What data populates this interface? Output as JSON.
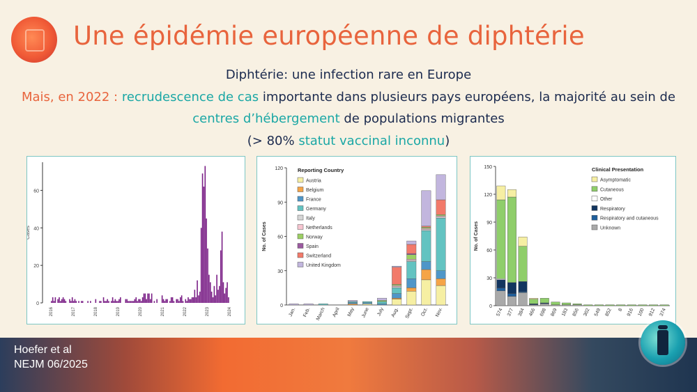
{
  "slide": {
    "title": "Une épidémie européenne de diphtérie",
    "line1": "Diphtérie: une infection rare en Europe",
    "line2": {
      "a": "Mais, en 2022 : ",
      "b": "recrudescence de cas",
      "c": " importante dans plusieurs pays européens, la majorité au sein de"
    },
    "line3": {
      "a": "centres d’hébergement",
      "b": " de populations migrantes"
    },
    "line4": {
      "a": "(> 80% ",
      "b": "statut vaccinal inconnu",
      "c": ")"
    },
    "footer": {
      "line1": "Hoefer et al",
      "line2": "NEJM 06/2025"
    }
  },
  "colors": {
    "title": "#e8643d",
    "teal": "#1aa7a5",
    "navy": "#1b2a4e",
    "bars1": "#7a1f86"
  },
  "chart_data": [
    {
      "type": "bar",
      "title": "",
      "ylabel": "Cases",
      "ylim": [
        0,
        75
      ],
      "yticks": [
        0,
        20,
        40,
        60
      ],
      "xticks": [
        "2016",
        "2017",
        "2018",
        "2019",
        "2020",
        "2021",
        "2022",
        "2023",
        "2024"
      ],
      "x_start": 2016,
      "x_end": 2024,
      "values": [
        1,
        3,
        1,
        3,
        0,
        2,
        3,
        1,
        2,
        3,
        2,
        1,
        0,
        0,
        2,
        1,
        3,
        1,
        2,
        1,
        0,
        1,
        0,
        1,
        1,
        0,
        0,
        0,
        1,
        0,
        1,
        0,
        0,
        0,
        2,
        0,
        0,
        1,
        1,
        0,
        3,
        1,
        1,
        2,
        1,
        0,
        1,
        3,
        1,
        2,
        1,
        1,
        2,
        3,
        0,
        0,
        0,
        2,
        2,
        1,
        1,
        1,
        1,
        1,
        2,
        3,
        1,
        2,
        2,
        1,
        3,
        5,
        5,
        2,
        5,
        5,
        2,
        5,
        0,
        1,
        0,
        2,
        0,
        0,
        0,
        4,
        2,
        1,
        2,
        2,
        0,
        1,
        3,
        3,
        1,
        0,
        2,
        2,
        1,
        3,
        4,
        1,
        0,
        2,
        1,
        3,
        2,
        2,
        3,
        3,
        7,
        3,
        12,
        4,
        6,
        40,
        69,
        62,
        73,
        45,
        29,
        15,
        11,
        6,
        3,
        9,
        4,
        15,
        7,
        9,
        28,
        38,
        11,
        5,
        8,
        11,
        3
      ],
      "color": "#7a1f86"
    },
    {
      "type": "bar",
      "stacked": true,
      "title": "",
      "ylabel": "No. of Cases",
      "ylim": [
        0,
        120
      ],
      "yticks": [
        0,
        30,
        60,
        90,
        120
      ],
      "categories": [
        "Jan.",
        "Feb.",
        "March",
        "April",
        "May",
        "June",
        "July",
        "Aug.",
        "Sept.",
        "Oct.",
        "Nov."
      ],
      "legend_title": "Reporting Country",
      "legend_position": "top-left",
      "series": [
        {
          "name": "Austria",
          "color": "#f6efa3",
          "values": [
            0,
            0,
            0,
            0,
            0,
            1,
            0,
            5,
            12,
            22,
            17
          ]
        },
        {
          "name": "Belgium",
          "color": "#f5a447",
          "values": [
            0,
            0,
            0,
            0,
            1,
            0,
            0,
            1,
            3,
            9,
            6
          ]
        },
        {
          "name": "France",
          "color": "#4f96c8",
          "values": [
            0,
            0,
            0,
            0,
            1,
            1,
            1,
            4,
            8,
            7,
            7
          ]
        },
        {
          "name": "Germany",
          "color": "#63c3c1",
          "values": [
            0,
            0,
            1,
            0,
            1,
            1,
            2,
            5,
            15,
            27,
            46
          ]
        },
        {
          "name": "Italy",
          "color": "#d6d6d6",
          "values": [
            0,
            0,
            0,
            0,
            0,
            0,
            0,
            1,
            1,
            1,
            1
          ]
        },
        {
          "name": "Netherlands",
          "color": "#f7c5d0",
          "values": [
            0,
            0,
            0,
            0,
            0,
            0,
            0,
            1,
            1,
            1,
            1
          ]
        },
        {
          "name": "Norway",
          "color": "#9ccf63",
          "values": [
            0,
            0,
            0,
            0,
            0,
            0,
            1,
            1,
            4,
            1,
            1
          ]
        },
        {
          "name": "Spain",
          "color": "#9b5aa0",
          "values": [
            0,
            0,
            0,
            0,
            0,
            0,
            0,
            0,
            1,
            0,
            0
          ]
        },
        {
          "name": "Switzerland",
          "color": "#f27a6a",
          "values": [
            0,
            0,
            0,
            0,
            0,
            0,
            0,
            15,
            8,
            1,
            13
          ]
        },
        {
          "name": "United Kingdom",
          "color": "#c2b6de",
          "values": [
            1,
            1,
            0,
            0,
            1,
            0,
            2,
            1,
            3,
            31,
            22
          ]
        }
      ]
    },
    {
      "type": "bar",
      "stacked": true,
      "title": "",
      "ylabel": "No. of Cases",
      "ylim": [
        0,
        150
      ],
      "yticks": [
        0,
        30,
        60,
        90,
        120,
        150
      ],
      "categories": [
        "574",
        "377",
        "384",
        "466",
        "698",
        "869",
        "183",
        "856",
        "302",
        "549",
        "852",
        "8",
        "916",
        "100",
        "912",
        "374"
      ],
      "legend_title": "Clinical Presentation",
      "legend_position": "top-right",
      "series": [
        {
          "name": "Unknown",
          "color": "#a9a9a9",
          "values": [
            16,
            10,
            14,
            1,
            2,
            1,
            1,
            1,
            0,
            0,
            0,
            0,
            0,
            0,
            0,
            0
          ]
        },
        {
          "name": "Respiratory and cutaneous",
          "color": "#1f5f9c",
          "values": [
            3,
            3,
            1,
            0,
            0,
            0,
            0,
            0,
            0,
            0,
            0,
            0,
            0,
            0,
            0,
            0
          ]
        },
        {
          "name": "Respiratory",
          "color": "#12355f",
          "values": [
            9,
            12,
            11,
            1,
            1,
            0,
            0,
            0,
            0,
            0,
            0,
            0,
            0,
            0,
            0,
            0
          ]
        },
        {
          "name": "Other",
          "color": "#ffffff",
          "values": [
            1,
            0,
            0,
            0,
            0,
            0,
            0,
            0,
            0,
            0,
            0,
            0,
            0,
            0,
            0,
            0
          ]
        },
        {
          "name": "Cutaneous",
          "color": "#8fce6a",
          "values": [
            85,
            92,
            38,
            5,
            5,
            3,
            2,
            1,
            1,
            1,
            1,
            1,
            1,
            1,
            1,
            1
          ]
        },
        {
          "name": "Asymptomatic",
          "color": "#f6efa3",
          "values": [
            15,
            8,
            10,
            1,
            0,
            0,
            0,
            0,
            0,
            0,
            0,
            0,
            0,
            0,
            0,
            0
          ]
        }
      ]
    }
  ]
}
